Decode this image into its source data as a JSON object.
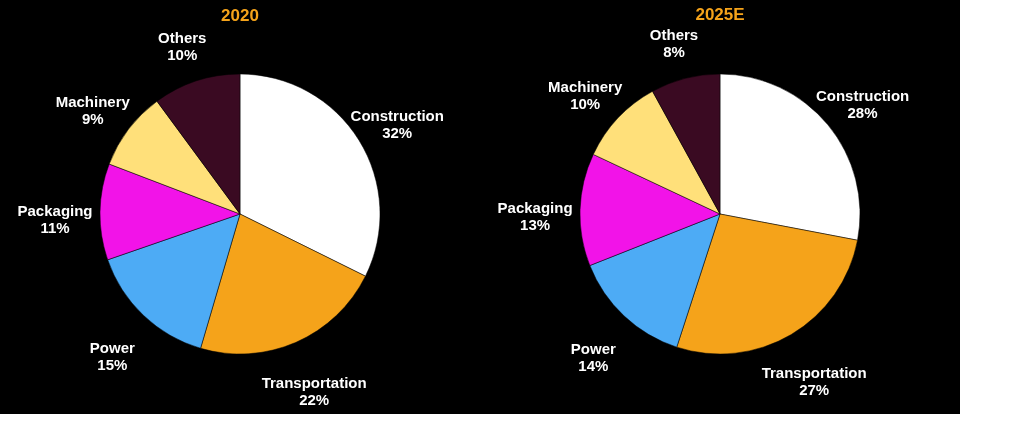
{
  "chart_data": [
    {
      "type": "pie",
      "title": "2020",
      "categories": [
        "Construction",
        "Transportation",
        "Power",
        "Packaging",
        "Machinery",
        "Others"
      ],
      "values": [
        32,
        22,
        15,
        11,
        9,
        10
      ],
      "value_labels": [
        "32%",
        "22%",
        "15%",
        "11%",
        "9%",
        "10%"
      ],
      "colors": [
        "#ffffff",
        "#f5a31a",
        "#4dabf5",
        "#f213e8",
        "#ffe07a",
        "#3a0a22"
      ],
      "legend": false
    },
    {
      "type": "pie",
      "title": "2025E",
      "categories": [
        "Construction",
        "Transportation",
        "Power",
        "Packaging",
        "Machinery",
        "Others"
      ],
      "values": [
        28,
        27,
        14,
        13,
        10,
        8
      ],
      "value_labels": [
        "28%",
        "27%",
        "14%",
        "13%",
        "10%",
        "8%"
      ],
      "colors": [
        "#ffffff",
        "#f5a31a",
        "#4dabf5",
        "#f213e8",
        "#ffe07a",
        "#3a0a22"
      ],
      "legend": false
    }
  ]
}
